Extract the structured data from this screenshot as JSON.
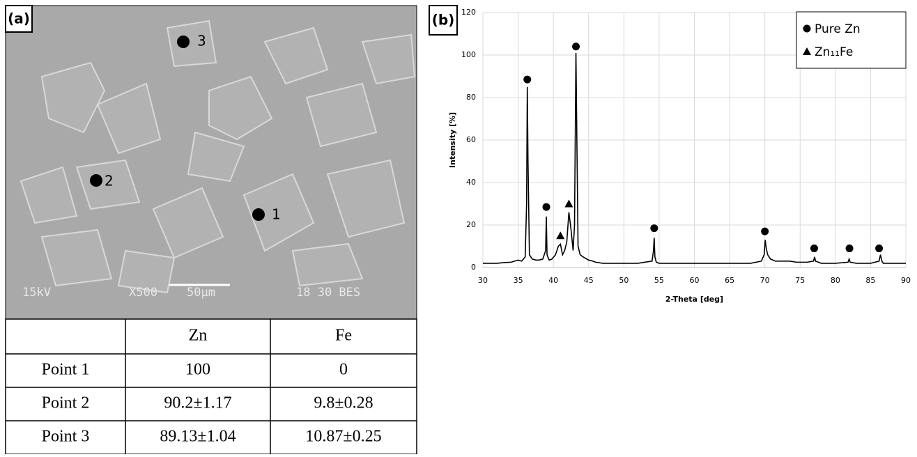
{
  "panel_a": {
    "label": "(a)",
    "points": [
      "1",
      "2",
      "3"
    ],
    "sem_info": [
      "15kV",
      "X500",
      "50µm",
      "18 30 BES"
    ]
  },
  "table": {
    "header": [
      "Zn",
      "Fe"
    ],
    "rows": [
      [
        "Point 1",
        "100",
        "0"
      ],
      [
        "Point 2",
        "90.2±1.17",
        "9.8±0.28"
      ],
      [
        "Point 3",
        "89.13±1.04",
        "10.87±0.25"
      ]
    ]
  },
  "chart_data": {
    "type": "line",
    "panel_label": "(b)",
    "xlabel": "2-Theta [deg]",
    "ylabel": "Intensity [%]",
    "xlim": [
      30,
      90
    ],
    "xticks": [
      30,
      35,
      40,
      45,
      50,
      55,
      60,
      65,
      70,
      75,
      80,
      85,
      90
    ],
    "ylim": [
      0,
      120
    ],
    "yticks": [
      0,
      20,
      40,
      60,
      80,
      100,
      120
    ],
    "grid": true,
    "color": "#000000",
    "x": [
      30,
      31,
      32,
      33,
      34,
      35,
      35.5,
      36,
      36.2,
      36.3,
      36.4,
      36.6,
      37,
      37.5,
      38,
      38.5,
      38.9,
      39.0,
      39.1,
      39.4,
      39.8,
      40.3,
      40.7,
      41.0,
      41.3,
      41.6,
      41.9,
      42.2,
      42.5,
      42.8,
      43.0,
      43.2,
      43.35,
      43.5,
      43.8,
      44.2,
      45,
      45.6,
      46,
      47,
      48,
      50,
      52,
      54,
      54.2,
      54.3,
      54.4,
      54.6,
      55,
      57,
      60,
      63,
      66,
      68,
      69.5,
      69.9,
      70.05,
      70.2,
      70.4,
      70.8,
      71.5,
      72.5,
      73.5,
      74.5,
      76,
      76.9,
      77.05,
      77.2,
      78,
      80,
      81.8,
      81.95,
      82.1,
      83,
      84,
      85,
      86.2,
      86.4,
      86.6,
      86.8,
      88,
      90
    ],
    "values": [
      2,
      2,
      2,
      2.3,
      2.5,
      3.5,
      3,
      5,
      30,
      85,
      50,
      6,
      4,
      3.5,
      3.5,
      4,
      8,
      24,
      6,
      3.5,
      4,
      6,
      10,
      11,
      6,
      8,
      12,
      26,
      18,
      8,
      20,
      101,
      55,
      10,
      6,
      5,
      3.5,
      3,
      2.5,
      2,
      2,
      2,
      2,
      3,
      8,
      14,
      5,
      2.5,
      2,
      2,
      2,
      2,
      2,
      2,
      3,
      6,
      13,
      9,
      6,
      4,
      3,
      3,
      3,
      2.5,
      2.5,
      3,
      5,
      3,
      2,
      2,
      2.5,
      4,
      2.5,
      2,
      2,
      2,
      3,
      6,
      3,
      2,
      2,
      2
    ],
    "legend": "upper right",
    "series": [
      {
        "name": "Pure Zn",
        "marker": "circle",
        "x": [
          36.3,
          39.0,
          43.2,
          54.3,
          70.0,
          77.0,
          82.0,
          86.2
        ],
        "values": [
          88.5,
          28.5,
          104,
          18.5,
          17,
          9,
          9,
          9
        ]
      },
      {
        "name": "Zn₁₁Fe",
        "marker": "triangle",
        "x": [
          41.0,
          42.2
        ],
        "values": [
          15,
          30
        ]
      }
    ]
  }
}
